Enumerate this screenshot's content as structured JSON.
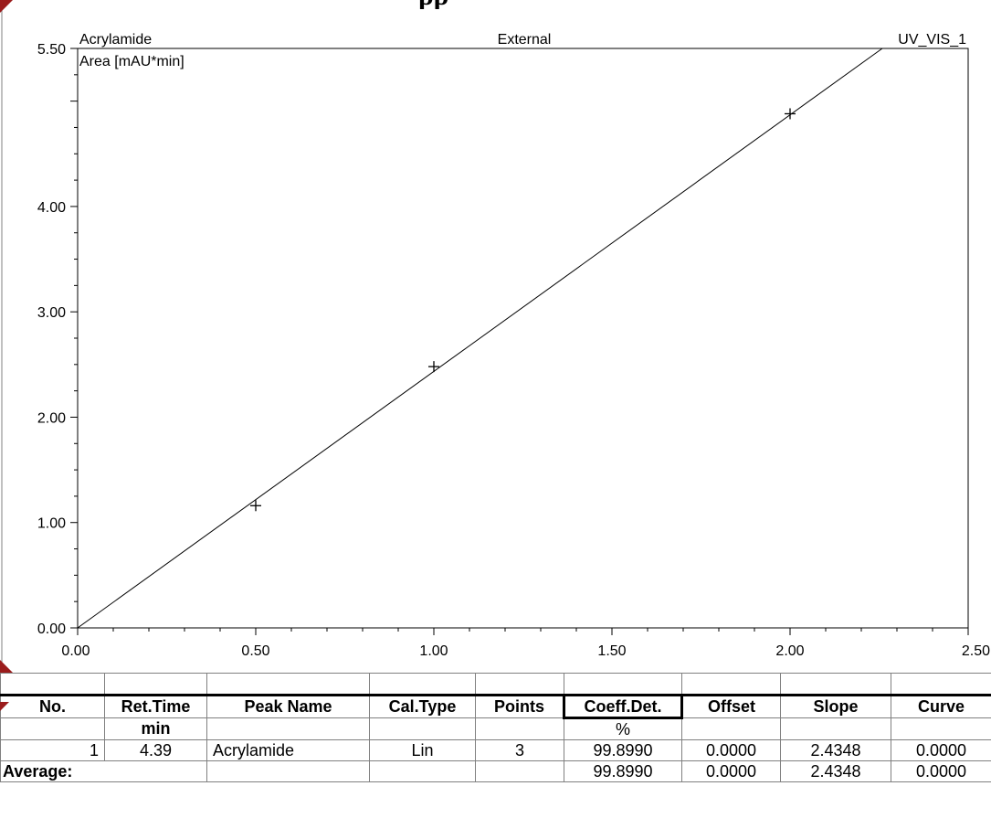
{
  "page_title_fragment": "pp",
  "chart_data": {
    "type": "scatter",
    "corner_labels": {
      "top_left": "Acrylamide",
      "top_center": "External",
      "top_right": "UV_VIS_1"
    },
    "ylabel": "Area  [mAU*min]",
    "xlabel": "",
    "xlim": [
      0.0,
      2.5
    ],
    "ylim": [
      0.0,
      5.5
    ],
    "x_ticks": [
      "0.00",
      "0.50",
      "1.00",
      "1.50",
      "2.00",
      "2.50"
    ],
    "y_ticks": [
      "0.00",
      "1.00",
      "2.00",
      "3.00",
      "4.00",
      "5.50"
    ],
    "y_tick_values": [
      0.0,
      1.0,
      2.0,
      3.0,
      4.0,
      5.5
    ],
    "x_tick_values": [
      0.0,
      0.5,
      1.0,
      1.5,
      2.0,
      2.5
    ],
    "points": [
      {
        "x": 0.5,
        "y": 1.16
      },
      {
        "x": 1.0,
        "y": 2.48
      },
      {
        "x": 2.0,
        "y": 4.88
      }
    ],
    "fit": {
      "offset": 0.0,
      "slope": 2.4348
    },
    "grid": false
  },
  "table": {
    "headers": [
      "No.",
      "Ret.Time",
      "Peak Name",
      "Cal.Type",
      "Points",
      "Coeff.Det.",
      "Offset",
      "Slope",
      "Curve"
    ],
    "units": [
      "",
      "min",
      "",
      "",
      "",
      "%",
      "",
      "",
      ""
    ],
    "rows": [
      [
        "1",
        "4.39",
        "Acrylamide",
        "Lin",
        "3",
        "99.8990",
        "0.0000",
        "2.4348",
        "0.0000"
      ]
    ],
    "average": {
      "label": "Average:",
      "values": [
        "99.8990",
        "0.0000",
        "2.4348",
        "0.0000"
      ]
    }
  },
  "colors": {
    "marker": "#9b1c1c",
    "line": "#000000",
    "axis": "#000000",
    "grid_line": "#808080"
  }
}
